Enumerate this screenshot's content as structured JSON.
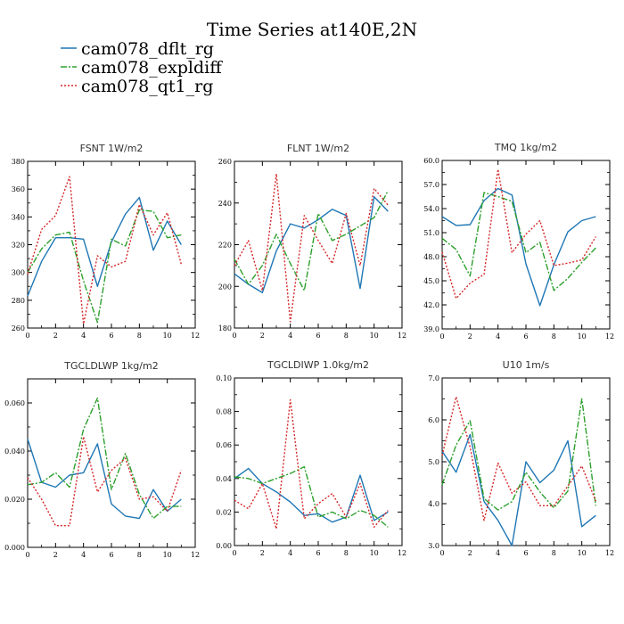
{
  "title": "Time Series at140E,2N",
  "legend": [
    {
      "name": "cam078_dflt_rg",
      "color": "#1f77b4",
      "dash": "solid"
    },
    {
      "name": "cam078_expldiff",
      "color": "#2ca02c",
      "dash": "dashdot"
    },
    {
      "name": "cam078_qt1_rg",
      "color": "#d62728",
      "dash": "dotted"
    }
  ],
  "chart_data": [
    {
      "type": "line",
      "title": "FSNT   1W/m2",
      "x": [
        0,
        1,
        2,
        3,
        4,
        5,
        6,
        7,
        8,
        9,
        10,
        11
      ],
      "xlim": [
        0,
        12
      ],
      "xticks": [
        0,
        2,
        4,
        6,
        8,
        10,
        12
      ],
      "ylim": [
        260,
        380
      ],
      "yticks": [
        260,
        280,
        300,
        320,
        340,
        360,
        380
      ],
      "yticklabels": [
        "260",
        "280",
        "300",
        "320",
        "340",
        "360",
        "380"
      ],
      "series": [
        {
          "name": "cam078_dflt_rg",
          "values": [
            283,
            308,
            325,
            325,
            324,
            290,
            322,
            342,
            354,
            316,
            337,
            320
          ]
        },
        {
          "name": "cam078_expldiff",
          "values": [
            300,
            317,
            327,
            329,
            294,
            264,
            324,
            319,
            345,
            344,
            325,
            327
          ]
        },
        {
          "name": "cam078_qt1_rg",
          "values": [
            299,
            331,
            341,
            369,
            263,
            312,
            304,
            308,
            349,
            327,
            343,
            306
          ]
        }
      ]
    },
    {
      "type": "line",
      "title": "FLNT   1W/m2",
      "x": [
        0,
        1,
        2,
        3,
        4,
        5,
        6,
        7,
        8,
        9,
        10,
        11
      ],
      "xlim": [
        0,
        12
      ],
      "xticks": [
        0,
        2,
        4,
        6,
        8,
        10,
        12
      ],
      "ylim": [
        180,
        260
      ],
      "yticks": [
        180,
        200,
        220,
        240,
        260
      ],
      "yticklabels": [
        "180",
        "200",
        "220",
        "240",
        "260"
      ],
      "series": [
        {
          "name": "cam078_dflt_rg",
          "values": [
            206,
            201,
            197,
            217,
            230,
            228,
            232,
            237,
            234,
            199,
            243,
            236
          ]
        },
        {
          "name": "cam078_expldiff",
          "values": [
            213,
            201,
            210,
            225,
            211,
            198,
            235,
            222,
            225,
            229,
            233,
            246
          ]
        },
        {
          "name": "cam078_qt1_rg",
          "values": [
            210,
            222,
            198,
            254,
            183,
            234,
            222,
            211,
            235,
            210,
            247,
            239
          ]
        }
      ]
    },
    {
      "type": "line",
      "title": "TMQ   1kg/m2",
      "x": [
        0,
        1,
        2,
        3,
        4,
        5,
        6,
        7,
        8,
        9,
        10,
        11
      ],
      "xlim": [
        0,
        12
      ],
      "xticks": [
        0,
        2,
        4,
        6,
        8,
        10,
        12
      ],
      "ylim": [
        39,
        60
      ],
      "yticks": [
        39,
        42,
        45,
        48,
        51,
        54,
        57,
        60
      ],
      "yticklabels": [
        "39.0",
        "42.0",
        "45.0",
        "48.0",
        "51.0",
        "54.0",
        "57.0",
        "60.0"
      ],
      "series": [
        {
          "name": "cam078_dflt_rg",
          "values": [
            53.0,
            51.9,
            52.0,
            55.0,
            56.5,
            55.7,
            47.1,
            41.9,
            47.0,
            51.1,
            52.5,
            53.0
          ]
        },
        {
          "name": "cam078_expldiff",
          "values": [
            50.3,
            48.9,
            45.6,
            56.0,
            55.5,
            54.9,
            48.5,
            49.8,
            43.8,
            45.3,
            47.3,
            49.1
          ]
        },
        {
          "name": "cam078_qt1_rg",
          "values": [
            48.6,
            42.8,
            44.7,
            45.8,
            58.9,
            48.5,
            50.8,
            52.5,
            46.9,
            47.2,
            47.6,
            50.5
          ]
        }
      ]
    },
    {
      "type": "line",
      "title": "TGCLDLWP   1kg/m2",
      "x": [
        0,
        1,
        2,
        3,
        4,
        5,
        6,
        7,
        8,
        9,
        10,
        11
      ],
      "xlim": [
        0,
        12
      ],
      "xticks": [
        0,
        2,
        4,
        6,
        8,
        10,
        12
      ],
      "ylim": [
        0,
        0.07
      ],
      "yticks": [
        0,
        0.02,
        0.04,
        0.06
      ],
      "yticklabels": [
        "0.000",
        "0.020",
        "0.040",
        "0.060"
      ],
      "series": [
        {
          "name": "cam078_dflt_rg",
          "values": [
            0.045,
            0.027,
            0.025,
            0.03,
            0.031,
            0.043,
            0.018,
            0.013,
            0.012,
            0.024,
            0.015,
            0.02
          ]
        },
        {
          "name": "cam078_expldiff",
          "values": [
            0.026,
            0.027,
            0.031,
            0.025,
            0.049,
            0.062,
            0.024,
            0.039,
            0.022,
            0.012,
            0.017,
            0.017
          ]
        },
        {
          "name": "cam078_qt1_rg",
          "values": [
            0.029,
            0.02,
            0.009,
            0.009,
            0.046,
            0.023,
            0.032,
            0.037,
            0.02,
            0.021,
            0.015,
            0.032
          ]
        }
      ]
    },
    {
      "type": "line",
      "title": "TGCLDIWP   1.0kg/m2",
      "x": [
        0,
        1,
        2,
        3,
        4,
        5,
        6,
        7,
        8,
        9,
        10,
        11
      ],
      "xlim": [
        0,
        12
      ],
      "xticks": [
        0,
        2,
        4,
        6,
        8,
        10,
        12
      ],
      "ylim": [
        0,
        0.1
      ],
      "yticks": [
        0,
        0.02,
        0.04,
        0.06,
        0.08,
        0.1
      ],
      "yticklabels": [
        "0.00",
        "0.02",
        "0.04",
        "0.06",
        "0.08",
        "0.10"
      ],
      "series": [
        {
          "name": "cam078_dflt_rg",
          "values": [
            0.04,
            0.046,
            0.037,
            0.032,
            0.026,
            0.018,
            0.019,
            0.014,
            0.017,
            0.042,
            0.015,
            0.02
          ]
        },
        {
          "name": "cam078_expldiff",
          "values": [
            0.041,
            0.04,
            0.037,
            0.04,
            0.043,
            0.047,
            0.017,
            0.02,
            0.016,
            0.021,
            0.018,
            0.011
          ]
        },
        {
          "name": "cam078_qt1_rg",
          "values": [
            0.027,
            0.022,
            0.037,
            0.01,
            0.087,
            0.016,
            0.025,
            0.031,
            0.017,
            0.037,
            0.011,
            0.021
          ]
        }
      ]
    },
    {
      "type": "line",
      "title": "U10   1m/s",
      "x": [
        0,
        1,
        2,
        3,
        4,
        5,
        6,
        7,
        8,
        9,
        10,
        11
      ],
      "xlim": [
        0,
        12
      ],
      "xticks": [
        0,
        2,
        4,
        6,
        8,
        10,
        12
      ],
      "ylim": [
        3,
        7
      ],
      "yticks": [
        3,
        4,
        5,
        6,
        7
      ],
      "yticklabels": [
        "3.0",
        "4.0",
        "5.0",
        "6.0",
        "7.0"
      ],
      "series": [
        {
          "name": "cam078_dflt_rg",
          "values": [
            5.25,
            4.75,
            5.65,
            4.05,
            3.6,
            3.0,
            5.0,
            4.5,
            4.8,
            5.5,
            3.45,
            3.72
          ]
        },
        {
          "name": "cam078_expldiff",
          "values": [
            4.45,
            5.4,
            5.98,
            4.12,
            3.85,
            4.05,
            4.75,
            4.28,
            3.9,
            4.3,
            6.5,
            3.95
          ]
        },
        {
          "name": "cam078_qt1_rg",
          "values": [
            5.15,
            6.55,
            5.35,
            3.6,
            4.97,
            4.25,
            4.52,
            3.95,
            3.95,
            4.42,
            4.9,
            4.06
          ]
        }
      ]
    }
  ]
}
